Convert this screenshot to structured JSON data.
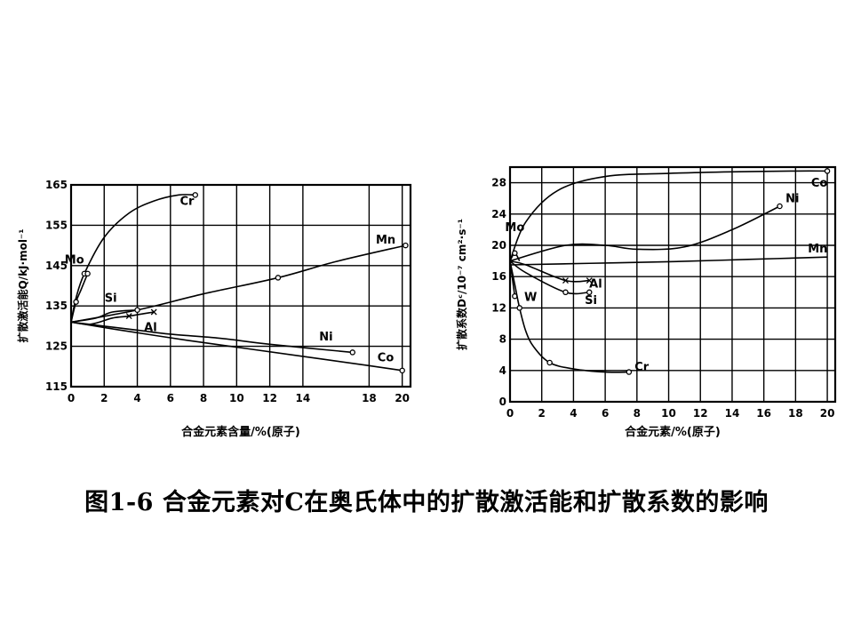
{
  "chart_data": [
    {
      "type": "line",
      "ylabel": "扩散激活能Q/kJ·mol⁻¹",
      "xlabel": "合金元素含量/%(原子)",
      "xlim": [
        0,
        20.5
      ],
      "ylim": [
        115,
        165
      ],
      "xticks": [
        0,
        2,
        4,
        6,
        8,
        10,
        12,
        14,
        18,
        20
      ],
      "yticks": [
        115,
        125,
        135,
        145,
        155,
        165
      ],
      "grid": true,
      "series": [
        {
          "name": "Cr",
          "x": [
            0,
            0.3,
            0.8,
            2,
            3.5,
            5,
            6.5,
            7.5
          ],
          "y": [
            131,
            137,
            143,
            152,
            158,
            161,
            162.5,
            162.5
          ]
        },
        {
          "name": "Mo",
          "x": [
            0,
            0.3,
            0.6,
            1
          ],
          "y": [
            131,
            136,
            139,
            143
          ]
        },
        {
          "name": "Mn",
          "x": [
            0,
            4,
            8,
            12.5,
            16,
            20.2
          ],
          "y": [
            131,
            134,
            138,
            142,
            146,
            150
          ]
        },
        {
          "name": "Si",
          "x": [
            0,
            1.5,
            2.5,
            4
          ],
          "y": [
            131,
            132,
            133.5,
            134
          ]
        },
        {
          "name": "Al",
          "x": [
            0,
            1.2,
            2.5,
            3.5,
            5
          ],
          "y": [
            131,
            130.5,
            132,
            132.5,
            133.5
          ]
        },
        {
          "name": "Ni",
          "x": [
            0,
            2,
            4,
            6,
            9,
            12,
            17
          ],
          "y": [
            131,
            130,
            129,
            128,
            127,
            125.5,
            123.5
          ]
        },
        {
          "name": "Co",
          "x": [
            0,
            3,
            7,
            10.5,
            14,
            17.5,
            20
          ],
          "y": [
            131,
            129,
            126.5,
            124.5,
            122.5,
            120.5,
            119
          ]
        }
      ]
    },
    {
      "type": "line",
      "ylabel": "扩散系数Dᶜ/10⁻⁷ cm²·s⁻¹",
      "xlabel": "合金元素/%(原子)",
      "xlim": [
        0,
        20.5
      ],
      "ylim": [
        0,
        30
      ],
      "xticks": [
        0,
        2,
        4,
        6,
        8,
        10,
        12,
        14,
        16,
        18,
        20
      ],
      "yticks": [
        0,
        4,
        8,
        12,
        16,
        20,
        24,
        28
      ],
      "grid": true,
      "series": [
        {
          "name": "Co",
          "x": [
            0,
            1,
            3,
            6,
            10,
            14,
            18,
            20
          ],
          "y": [
            18,
            23,
            27,
            28.8,
            29.2,
            29.4,
            29.5,
            29.5
          ]
        },
        {
          "name": "Ni",
          "x": [
            0,
            3.5,
            6,
            8,
            11,
            14,
            17
          ],
          "y": [
            18,
            20,
            20,
            19.5,
            19.8,
            22,
            25
          ]
        },
        {
          "name": "Mo",
          "x": [
            0,
            0.3,
            0.6
          ],
          "y": [
            18,
            19,
            18
          ]
        },
        {
          "name": "Mn",
          "x": [
            0,
            5,
            10,
            15,
            20
          ],
          "y": [
            17.5,
            17.7,
            17.9,
            18.2,
            18.5
          ]
        },
        {
          "name": "Al",
          "x": [
            0,
            1,
            3.5,
            5
          ],
          "y": [
            18,
            17.5,
            15.5,
            15.5
          ]
        },
        {
          "name": "Si",
          "x": [
            0,
            1,
            3.5,
            5
          ],
          "y": [
            18,
            16.5,
            14,
            14
          ]
        },
        {
          "name": "W",
          "x": [
            0,
            0.3
          ],
          "y": [
            18,
            13.5
          ]
        },
        {
          "name": "Cr",
          "x": [
            0,
            0.3,
            0.6,
            1,
            1.5,
            2.5,
            4,
            6,
            7.5
          ],
          "y": [
            18,
            15,
            12,
            9,
            7,
            5,
            4.2,
            3.8,
            3.8
          ]
        }
      ]
    }
  ],
  "caption": "图1-6 合金元素对C在奥氏体中的扩散激活能和扩散系数的影响"
}
